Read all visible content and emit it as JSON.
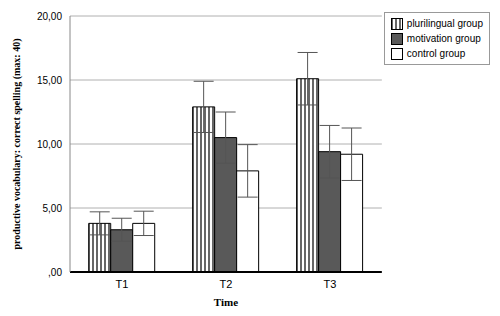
{
  "chart_data": {
    "type": "bar",
    "x_label": "Time",
    "y_label": "productive vocabulary: correct spelling (max: 40)",
    "categories": [
      "T1",
      "T2",
      "T3"
    ],
    "series": [
      {
        "name": "plurilingual group",
        "color": "#ffffff",
        "values": [
          3.8,
          12.9,
          15.1
        ],
        "errors": [
          0.9,
          2.0,
          2.05
        ]
      },
      {
        "name": "motivation group",
        "color": "#595959",
        "values": [
          3.3,
          10.5,
          9.4
        ],
        "errors": [
          0.9,
          2.0,
          2.05
        ]
      },
      {
        "name": "control group",
        "color": "#ffffff",
        "values": [
          3.8,
          7.9,
          9.2
        ],
        "errors": [
          0.95,
          2.05,
          2.05
        ]
      }
    ],
    "ylim": [
      0,
      20
    ],
    "yticks": [
      {
        "value": 0,
        "label": ",00"
      },
      {
        "value": 5,
        "label": "5,00"
      },
      {
        "value": 10,
        "label": "10,00"
      },
      {
        "value": 15,
        "label": "15,00"
      },
      {
        "value": 20,
        "label": "20,00"
      }
    ],
    "grid": true,
    "legend": "top-right"
  }
}
